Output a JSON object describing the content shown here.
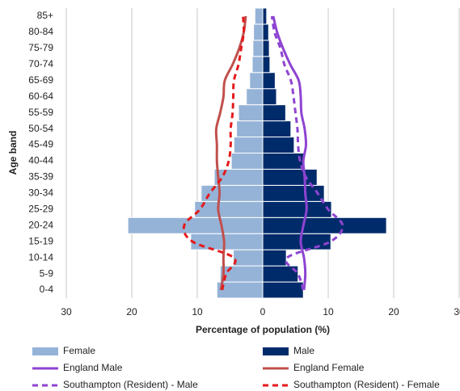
{
  "chart_data": {
    "type": "pyramid",
    "xlabel": "Percentage of population (%)",
    "ylabel": "Age band",
    "categories": [
      "0-4",
      "5-9",
      "10-14",
      "15-19",
      "20-24",
      "25-29",
      "30-34",
      "35-39",
      "40-44",
      "45-49",
      "50-54",
      "55-59",
      "60-64",
      "65-69",
      "70-74",
      "75-79",
      "80-84",
      "85+"
    ],
    "xlim": [
      -30,
      30
    ],
    "xticks": [
      {
        "value": -30,
        "label": "30"
      },
      {
        "value": -20,
        "label": "20"
      },
      {
        "value": -10,
        "label": "10"
      },
      0,
      10,
      20,
      30
    ],
    "grid": true,
    "series": [
      {
        "name": "Female",
        "kind": "bar",
        "color": "#95b3d7",
        "values": [
          -7.0,
          -6.5,
          -4.5,
          -11.0,
          -20.6,
          -10.4,
          -9.4,
          -7.4,
          -4.8,
          -4.4,
          -4.0,
          -3.7,
          -2.5,
          -2.0,
          -1.6,
          -1.5,
          -1.4,
          -1.2
        ]
      },
      {
        "name": "Male",
        "kind": "bar",
        "color": "#002b6b",
        "values": [
          6.2,
          5.4,
          3.6,
          10.4,
          18.9,
          10.5,
          9.4,
          8.3,
          6.4,
          4.8,
          4.3,
          3.5,
          2.1,
          1.9,
          1.1,
          1.0,
          0.9,
          0.6
        ]
      },
      {
        "name": "England Male",
        "kind": "line",
        "dashed": false,
        "color": "#8e44d1",
        "values": [
          6.3,
          6.5,
          6.3,
          5.8,
          6.2,
          6.7,
          6.5,
          6.4,
          6.2,
          6.6,
          6.4,
          5.9,
          5.8,
          5.5,
          4.2,
          3.1,
          2.2,
          1.6
        ]
      },
      {
        "name": "England Female",
        "kind": "line",
        "dashed": false,
        "color": "#c0504d",
        "values": [
          -6.4,
          -6.0,
          -6.0,
          -5.9,
          -6.3,
          -6.8,
          -6.6,
          -6.8,
          -7.0,
          -7.0,
          -7.1,
          -6.5,
          -6.0,
          -5.8,
          -4.6,
          -3.6,
          -2.9,
          -2.6
        ]
      },
      {
        "name": "Southampton (Resident) - Male",
        "kind": "line",
        "dashed": true,
        "color": "#8e44d1",
        "values": [
          6.2,
          5.4,
          3.7,
          10.3,
          12.2,
          10.0,
          8.4,
          6.6,
          5.7,
          5.4,
          5.3,
          5.0,
          4.7,
          4.3,
          3.3,
          2.7,
          1.8,
          1.4
        ]
      },
      {
        "name": "Southampton (Resident) - Female",
        "kind": "line",
        "dashed": true,
        "color": "#e41a1c",
        "values": [
          -6.2,
          -5.6,
          -4.4,
          -10.7,
          -12.0,
          -9.6,
          -8.1,
          -6.2,
          -5.2,
          -4.9,
          -4.9,
          -4.6,
          -4.5,
          -4.4,
          -3.7,
          -3.3,
          -2.9,
          -3.0
        ]
      }
    ]
  }
}
